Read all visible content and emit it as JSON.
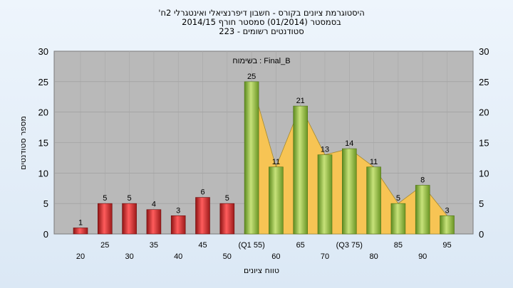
{
  "titles": {
    "line1": "'היסטוגרמת ציונים בקורס - חשבון דיפרנציאלי ואינטגרלי 2ח",
    "line2": "בסמסטר  (01/2014)  סמסטר חורף 2014/15",
    "line3": "סטודנטים רשומים - 223"
  },
  "chart_data": {
    "type": "bar",
    "categories": [
      "20",
      "25",
      "30",
      "35",
      "40",
      "45",
      "50",
      "(Q1 55)",
      "60",
      "65",
      "70",
      "(Q3 75)",
      "80",
      "85",
      "90",
      "95"
    ],
    "values": [
      1,
      5,
      5,
      4,
      3,
      6,
      5,
      25,
      11,
      21,
      13,
      14,
      11,
      5,
      8,
      3
    ],
    "bar_colors": [
      "#d93030",
      "#d93030",
      "#d93030",
      "#d93030",
      "#d93030",
      "#d93030",
      "#d93030",
      "#8fbf3f",
      "#8fbf3f",
      "#8fbf3f",
      "#8fbf3f",
      "#8fbf3f",
      "#8fbf3f",
      "#8fbf3f",
      "#8fbf3f",
      "#8fbf3f"
    ],
    "area_label": "בשימוח : Final_B",
    "xlabel": "טווח ציונים",
    "ylabel": "מספר סטודנטים",
    "ylim": [
      0,
      30
    ],
    "yticks": [
      0,
      5,
      10,
      15,
      20,
      25,
      30
    ],
    "grid": true
  }
}
